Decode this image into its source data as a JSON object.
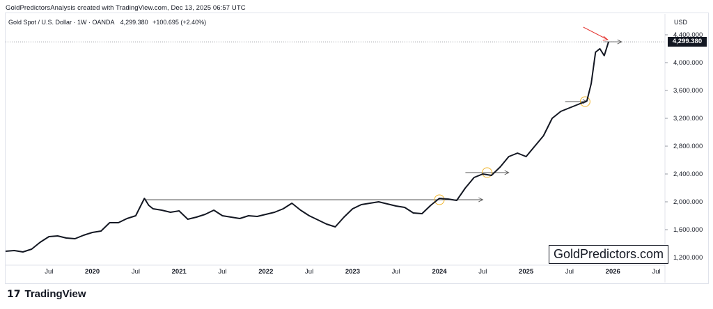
{
  "header": {
    "attribution": "GoldPredictorsAnalysis created with TradingView.com, Dec 13, 2025 06:57 UTC"
  },
  "legend": {
    "symbol": "Gold Spot / U.S. Dollar · 1W · OANDA",
    "price": "4,299.380",
    "change": "+100.695 (+2.40%)"
  },
  "axis": {
    "currency": "USD",
    "last_price_label": "4,299.380"
  },
  "watermark": "GoldPredictors.com",
  "footer": {
    "logo": "17",
    "brand": "TradingView"
  },
  "colors": {
    "line": "#131722",
    "arrow": "#555555",
    "highlight_circle": "#f0b429",
    "red_arrow": "#e53935",
    "price_tag": "#131722"
  },
  "chart_data": {
    "type": "line",
    "series": [
      {
        "values_note": "",
        "x": [
          2019.0,
          2019.1,
          2019.2,
          2019.3,
          2019.4,
          2019.5,
          2019.6,
          2019.7,
          2019.8,
          2019.9,
          2020.0,
          2020.1,
          2020.2,
          2020.3,
          2020.4,
          2020.5,
          2020.6,
          2020.65,
          2020.7,
          2020.8,
          2020.9,
          2021.0,
          2021.1,
          2021.2,
          2021.3,
          2021.4,
          2021.5,
          2021.6,
          2021.7,
          2021.8,
          2021.9,
          2022.0,
          2022.1,
          2022.2,
          2022.3,
          2022.4,
          2022.5,
          2022.6,
          2022.7,
          2022.8,
          2022.9,
          2023.0,
          2023.1,
          2023.2,
          2023.3,
          2023.4,
          2023.5,
          2023.6,
          2023.7,
          2023.8,
          2023.9,
          2024.0,
          2024.1,
          2024.2,
          2024.3,
          2024.4,
          2024.5,
          2024.6,
          2024.7,
          2024.8,
          2024.9,
          2025.0,
          2025.1,
          2025.2,
          2025.3,
          2025.4,
          2025.5,
          2025.6,
          2025.7,
          2025.75,
          2025.8,
          2025.85,
          2025.9,
          2025.95
        ],
        "y": [
          1290,
          1300,
          1280,
          1320,
          1420,
          1500,
          1510,
          1480,
          1470,
          1520,
          1560,
          1580,
          1700,
          1700,
          1760,
          1800,
          2050,
          1950,
          1900,
          1880,
          1850,
          1870,
          1750,
          1780,
          1820,
          1880,
          1800,
          1780,
          1760,
          1800,
          1790,
          1820,
          1850,
          1900,
          1980,
          1880,
          1800,
          1740,
          1680,
          1640,
          1780,
          1900,
          1960,
          1980,
          2000,
          1970,
          1940,
          1920,
          1840,
          1830,
          1950,
          2050,
          2040,
          2020,
          2200,
          2350,
          2400,
          2380,
          2500,
          2650,
          2700,
          2650,
          2800,
          2950,
          3200,
          3300,
          3350,
          3400,
          3450,
          3700,
          4150,
          4200,
          4100,
          4299
        ]
      }
    ],
    "x_ticks": [
      "Jul",
      "2020",
      "Jul",
      "2021",
      "Jul",
      "2022",
      "Jul",
      "2023",
      "Jul",
      "2024",
      "Jul",
      "2025",
      "Jul",
      "2026",
      "Jul"
    ],
    "y_ticks": [
      "1,200.000",
      "1,600.000",
      "2,000.000",
      "2,400.000",
      "2,800.000",
      "3,200.000",
      "3,600.000",
      "4,000.000",
      "4,400.000"
    ],
    "ylim": [
      1100,
      4500
    ],
    "xlim": [
      2019.0,
      2026.6
    ]
  }
}
